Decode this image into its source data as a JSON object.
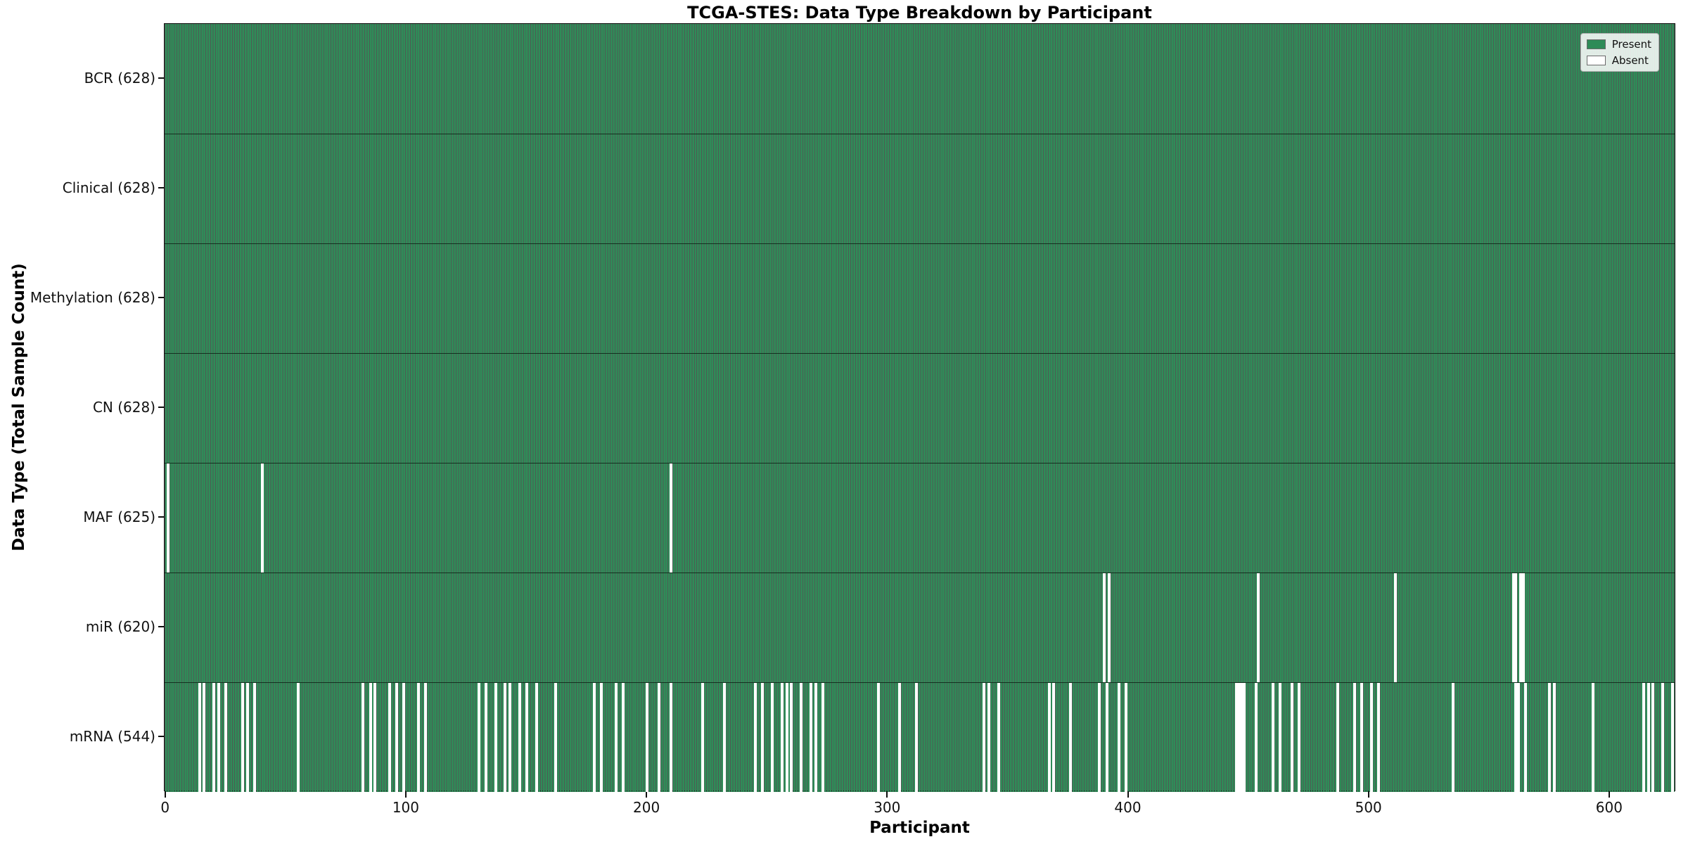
{
  "figure": {
    "title": "TCGA-STES: Data Type Breakdown by Participant",
    "xlabel": "Participant",
    "ylabel": "Data Type (Total Sample Count)"
  },
  "legend": {
    "items": [
      {
        "label": "Present",
        "color": "#2e8b57"
      },
      {
        "label": "Absent",
        "color": "#ffffff"
      }
    ]
  },
  "chart_data": {
    "type": "heatmap",
    "title": "TCGA-STES: Data Type Breakdown by Participant",
    "xlabel": "Participant",
    "ylabel": "Data Type (Total Sample Count)",
    "x_ticks": [
      0,
      100,
      200,
      300,
      400,
      500,
      600
    ],
    "xlim": [
      -0.5,
      627.5
    ],
    "n_participants": 628,
    "grid": false,
    "legend_position": "upper right",
    "present_color": "#2e8b57",
    "absent_color": "#ffffff",
    "rows": [
      {
        "label": "BCR (628)",
        "name": "BCR",
        "total": 628,
        "absent": []
      },
      {
        "label": "Clinical (628)",
        "name": "Clinical",
        "total": 628,
        "absent": []
      },
      {
        "label": "Methylation (628)",
        "name": "Methylation",
        "total": 628,
        "absent": []
      },
      {
        "label": "CN (628)",
        "name": "CN",
        "total": 628,
        "absent": []
      },
      {
        "label": "MAF (625)",
        "name": "MAF",
        "total": 625,
        "absent": [
          1,
          40,
          210
        ]
      },
      {
        "label": "miR (620)",
        "name": "miR",
        "total": 620,
        "absent": [
          390,
          392,
          454,
          511,
          560,
          561,
          563,
          564
        ]
      },
      {
        "label": "mRNA (544)",
        "name": "mRNA",
        "total": 544,
        "absent": [
          14,
          16,
          20,
          22,
          25,
          32,
          34,
          37,
          55,
          82,
          85,
          87,
          93,
          96,
          99,
          105,
          108,
          130,
          133,
          137,
          141,
          143,
          147,
          150,
          154,
          162,
          178,
          181,
          187,
          190,
          200,
          205,
          210,
          223,
          232,
          245,
          248,
          252,
          256,
          258,
          260,
          264,
          268,
          270,
          273,
          296,
          305,
          312,
          340,
          342,
          346,
          367,
          369,
          376,
          388,
          391,
          396,
          399,
          445,
          446,
          447,
          448,
          453,
          460,
          463,
          468,
          471,
          487,
          494,
          497,
          501,
          504,
          535,
          561,
          562,
          565,
          575,
          577,
          593,
          614,
          616,
          618,
          622,
          626
        ]
      }
    ]
  }
}
